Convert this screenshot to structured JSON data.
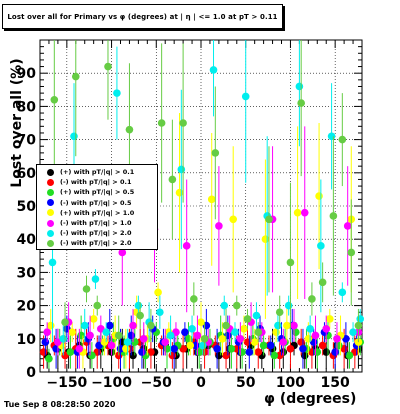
{
  "title": "Lost over all for Primary vs φ (degrees) at | η | <= 1.0 at pT > 0.11",
  "timestamp": "Tue Sep  8 08:28:50 2020",
  "chart_data": {
    "type": "scatter",
    "xlabel": "φ (degrees)",
    "ylabel": "Lost over all (%)",
    "xlim": [
      -180,
      180
    ],
    "ylim": [
      0,
      100
    ],
    "x_ticks": [
      -150,
      -100,
      -50,
      0,
      50,
      100,
      150
    ],
    "x_tick_labels": [
      "−150",
      "−100",
      "−50",
      "0",
      "50",
      "100",
      "150"
    ],
    "y_ticks": [
      0,
      10,
      20,
      30,
      40,
      50,
      60,
      70,
      80,
      90
    ],
    "y_tick_labels": [
      "0",
      "10",
      "20",
      "30",
      "40",
      "50",
      "60",
      "70",
      "80",
      "90"
    ],
    "grid": true,
    "legend_position": "left",
    "series": [
      {
        "name": "(+) with pT/|q| > 0.1",
        "color": "#000000",
        "points": [
          [
            -172,
            5
          ],
          [
            -160,
            7
          ],
          [
            -148,
            6
          ],
          [
            -136,
            8
          ],
          [
            -124,
            5
          ],
          [
            -112,
            7
          ],
          [
            -100,
            6
          ],
          [
            -88,
            9
          ],
          [
            -76,
            5
          ],
          [
            -64,
            7
          ],
          [
            -52,
            6
          ],
          [
            -40,
            8
          ],
          [
            -28,
            5
          ],
          [
            -16,
            7
          ],
          [
            -4,
            6
          ],
          [
            8,
            8
          ],
          [
            20,
            5
          ],
          [
            32,
            7
          ],
          [
            44,
            6
          ],
          [
            56,
            8
          ],
          [
            68,
            5
          ],
          [
            80,
            7
          ],
          [
            92,
            6
          ],
          [
            104,
            8
          ],
          [
            116,
            5
          ],
          [
            128,
            7
          ],
          [
            140,
            6
          ],
          [
            152,
            8
          ],
          [
            164,
            5
          ],
          [
            176,
            7
          ]
        ]
      },
      {
        "name": "(-) with pT/|q| > 0.1",
        "color": "#ff0000",
        "points": [
          [
            -176,
            6
          ],
          [
            -164,
            8
          ],
          [
            -152,
            5
          ],
          [
            -140,
            7
          ],
          [
            -128,
            9
          ],
          [
            -116,
            6
          ],
          [
            -104,
            8
          ],
          [
            -92,
            5
          ],
          [
            -80,
            7
          ],
          [
            -68,
            9
          ],
          [
            -56,
            6
          ],
          [
            -44,
            8
          ],
          [
            -32,
            5
          ],
          [
            -20,
            7
          ],
          [
            -8,
            9
          ],
          [
            4,
            6
          ],
          [
            16,
            8
          ],
          [
            28,
            5
          ],
          [
            40,
            7
          ],
          [
            52,
            9
          ],
          [
            64,
            6
          ],
          [
            76,
            8
          ],
          [
            88,
            5
          ],
          [
            100,
            7
          ],
          [
            112,
            9
          ],
          [
            124,
            6
          ],
          [
            136,
            8
          ],
          [
            148,
            5
          ],
          [
            160,
            7
          ],
          [
            172,
            6
          ]
        ]
      },
      {
        "name": "(+) with pT/|q| > 0.5",
        "color": "#22dd22",
        "points": [
          [
            -170,
            4
          ],
          [
            -158,
            9
          ],
          [
            -146,
            6
          ],
          [
            -134,
            11
          ],
          [
            -122,
            5
          ],
          [
            -110,
            8
          ],
          [
            -98,
            10
          ],
          [
            -86,
            6
          ],
          [
            -74,
            9
          ],
          [
            -62,
            5
          ],
          [
            -50,
            12
          ],
          [
            -38,
            7
          ],
          [
            -26,
            8
          ],
          [
            -14,
            10
          ],
          [
            -2,
            6
          ],
          [
            10,
            9
          ],
          [
            22,
            11
          ],
          [
            34,
            7
          ],
          [
            46,
            6
          ],
          [
            58,
            10
          ],
          [
            70,
            8
          ],
          [
            82,
            5
          ],
          [
            94,
            9
          ],
          [
            106,
            12
          ],
          [
            118,
            7
          ],
          [
            130,
            6
          ],
          [
            142,
            11
          ],
          [
            154,
            8
          ],
          [
            166,
            5
          ],
          [
            178,
            9
          ]
        ]
      },
      {
        "name": "(-) with pT/|q| > 0.5",
        "color": "#0000ff",
        "points": [
          [
            -174,
            9
          ],
          [
            -162,
            7
          ],
          [
            -150,
            13
          ],
          [
            -138,
            6
          ],
          [
            -126,
            10
          ],
          [
            -114,
            8
          ],
          [
            -102,
            14
          ],
          [
            -90,
            7
          ],
          [
            -78,
            11
          ],
          [
            -66,
            6
          ],
          [
            -54,
            13
          ],
          [
            -42,
            9
          ],
          [
            -30,
            7
          ],
          [
            -18,
            12
          ],
          [
            -6,
            8
          ],
          [
            6,
            14
          ],
          [
            18,
            7
          ],
          [
            30,
            11
          ],
          [
            42,
            9
          ],
          [
            54,
            6
          ],
          [
            66,
            13
          ],
          [
            78,
            8
          ],
          [
            90,
            10
          ],
          [
            102,
            14
          ],
          [
            114,
            7
          ],
          [
            126,
            9
          ],
          [
            138,
            12
          ],
          [
            150,
            6
          ],
          [
            162,
            10
          ],
          [
            174,
            8
          ]
        ]
      },
      {
        "name": "(+) with pT/|q| > 1.0",
        "color": "#ffff00",
        "points": [
          [
            -168,
            14
          ],
          [
            -156,
            8
          ],
          [
            -144,
            12
          ],
          [
            -132,
            6
          ],
          [
            -120,
            16
          ],
          [
            -108,
            9
          ],
          [
            -96,
            11
          ],
          [
            -84,
            7
          ],
          [
            -72,
            18
          ],
          [
            -60,
            10
          ],
          [
            -48,
            24
          ],
          [
            -36,
            12
          ],
          [
            -24,
            54
          ],
          [
            -12,
            8
          ],
          [
            0,
            15
          ],
          [
            12,
            52
          ],
          [
            24,
            10
          ],
          [
            36,
            46
          ],
          [
            48,
            13
          ],
          [
            60,
            9
          ],
          [
            72,
            40
          ],
          [
            84,
            12
          ],
          [
            96,
            14
          ],
          [
            108,
            48
          ],
          [
            120,
            10
          ],
          [
            132,
            53
          ],
          [
            144,
            16
          ],
          [
            156,
            11
          ],
          [
            168,
            46
          ],
          [
            176,
            9
          ]
        ]
      },
      {
        "name": "(-) with pT/|q| > 1.0",
        "color": "#ff00ff",
        "points": [
          [
            -172,
            12
          ],
          [
            -160,
            9
          ],
          [
            -148,
            15
          ],
          [
            -136,
            7
          ],
          [
            -124,
            11
          ],
          [
            -112,
            13
          ],
          [
            -100,
            8
          ],
          [
            -88,
            36
          ],
          [
            -76,
            14
          ],
          [
            -64,
            10
          ],
          [
            -52,
            43
          ],
          [
            -40,
            9
          ],
          [
            -28,
            12
          ],
          [
            -16,
            38
          ],
          [
            -4,
            11
          ],
          [
            8,
            9
          ],
          [
            20,
            44
          ],
          [
            32,
            13
          ],
          [
            44,
            10
          ],
          [
            56,
            15
          ],
          [
            68,
            12
          ],
          [
            80,
            46
          ],
          [
            92,
            9
          ],
          [
            104,
            14
          ],
          [
            116,
            48
          ],
          [
            128,
            11
          ],
          [
            140,
            13
          ],
          [
            152,
            10
          ],
          [
            164,
            44
          ],
          [
            176,
            12
          ]
        ]
      },
      {
        "name": "(-) with pT/|q| > 2.0",
        "color": "#00eeee",
        "points": [
          [
            -166,
            33
          ],
          [
            -154,
            10
          ],
          [
            -142,
            71
          ],
          [
            -130,
            14
          ],
          [
            -118,
            28
          ],
          [
            -106,
            12
          ],
          [
            -94,
            84
          ],
          [
            -82,
            9
          ],
          [
            -70,
            20
          ],
          [
            -58,
            15
          ],
          [
            -46,
            18
          ],
          [
            -34,
            11
          ],
          [
            -22,
            61
          ],
          [
            -10,
            13
          ],
          [
            2,
            8
          ],
          [
            14,
            91
          ],
          [
            26,
            20
          ],
          [
            38,
            12
          ],
          [
            50,
            83
          ],
          [
            62,
            17
          ],
          [
            74,
            47
          ],
          [
            86,
            14
          ],
          [
            98,
            20
          ],
          [
            110,
            86
          ],
          [
            122,
            13
          ],
          [
            134,
            38
          ],
          [
            146,
            71
          ],
          [
            158,
            24
          ],
          [
            170,
            12
          ],
          [
            178,
            16
          ]
        ]
      },
      {
        "name": "(-) with pT/|q| > 2.0",
        "color": "#66cc44",
        "points": [
          [
            -164,
            82
          ],
          [
            -152,
            15
          ],
          [
            -140,
            89
          ],
          [
            -128,
            25
          ],
          [
            -116,
            20
          ],
          [
            -104,
            92
          ],
          [
            -92,
            11
          ],
          [
            -80,
            73
          ],
          [
            -68,
            17
          ],
          [
            -56,
            14
          ],
          [
            -44,
            75
          ],
          [
            -32,
            58
          ],
          [
            -20,
            75
          ],
          [
            -8,
            22
          ],
          [
            4,
            10
          ],
          [
            16,
            66
          ],
          [
            28,
            14
          ],
          [
            40,
            20
          ],
          [
            52,
            16
          ],
          [
            64,
            12
          ],
          [
            76,
            46
          ],
          [
            88,
            18
          ],
          [
            100,
            33
          ],
          [
            112,
            81
          ],
          [
            124,
            22
          ],
          [
            136,
            27
          ],
          [
            148,
            47
          ],
          [
            158,
            70
          ],
          [
            168,
            36
          ],
          [
            176,
            14
          ]
        ]
      }
    ]
  }
}
